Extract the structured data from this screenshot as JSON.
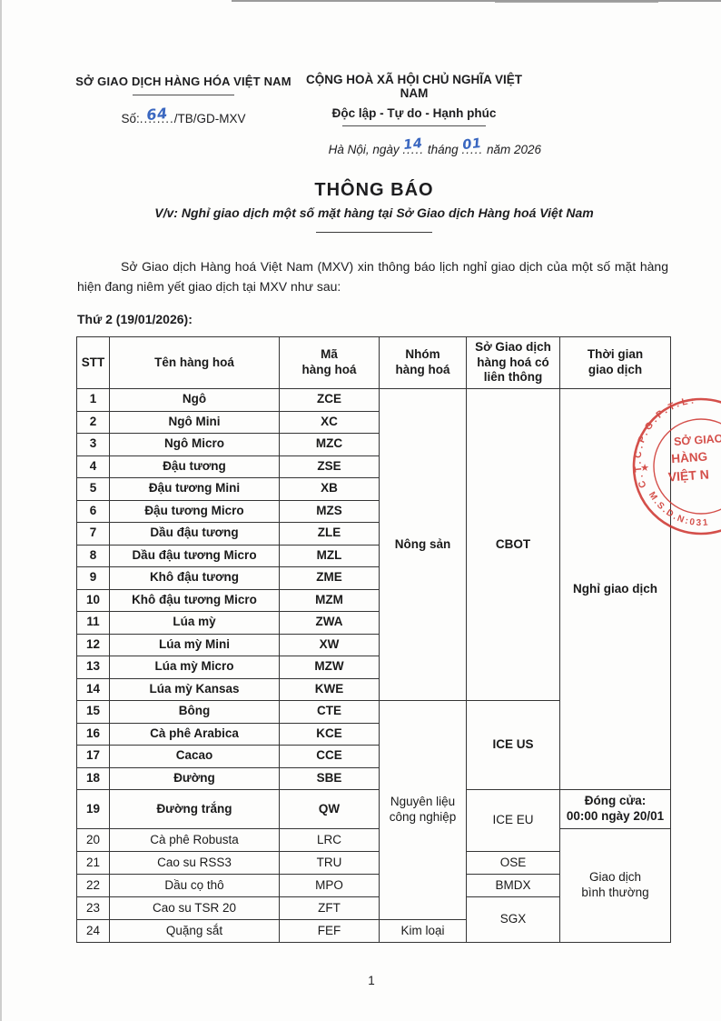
{
  "header": {
    "org_name": "SỞ GIAO DỊCH HÀNG HÓA VIỆT NAM",
    "doc_number_prefix": "Số:",
    "doc_number_dots": "........",
    "doc_number_value": "64",
    "doc_number_suffix": "/TB/GD-MXV",
    "national_motto_line1": "CỘNG HOÀ XÃ HỘI CHỦ NGHĨA VIỆT NAM",
    "national_motto_line2": "Độc lập - Tự do - Hạnh phúc",
    "date_prefix": "Hà Nội, ngày ",
    "date_day_dots": ".....",
    "date_day": "14",
    "date_middle": " tháng ",
    "date_month_dots": ".....",
    "date_month": "01",
    "date_suffix": " năm 2026"
  },
  "title": "THÔNG BÁO",
  "subtitle": "V/v: Nghỉ giao dịch một số mặt hàng tại Sở Giao dịch Hàng hoá Việt Nam",
  "body_paragraph": "Sở Giao dịch Hàng hoá Việt Nam (MXV) xin thông báo lịch nghỉ giao dịch của một số mặt hàng hiện đang niêm yết giao dịch tại MXV như sau:",
  "section_heading": "Thứ 2 (19/01/2026):",
  "table": {
    "headers": [
      "STT",
      "Tên hàng hoá",
      "Mã\nhàng hoá",
      "Nhóm\nhàng hoá",
      "Sở Giao dịch\nhàng hoá có\nliên thông",
      "Thời gian\ngiao dịch"
    ],
    "rows": [
      {
        "stt": "1",
        "name": "Ngô",
        "code": "ZCE",
        "bold": true
      },
      {
        "stt": "2",
        "name": "Ngô Mini",
        "code": "XC",
        "bold": true
      },
      {
        "stt": "3",
        "name": "Ngô Micro",
        "code": "MZC",
        "bold": true
      },
      {
        "stt": "4",
        "name": "Đậu tương",
        "code": "ZSE",
        "bold": true
      },
      {
        "stt": "5",
        "name": "Đậu tương Mini",
        "code": "XB",
        "bold": true
      },
      {
        "stt": "6",
        "name": "Đậu tương Micro",
        "code": "MZS",
        "bold": true
      },
      {
        "stt": "7",
        "name": "Dầu đậu tương",
        "code": "ZLE",
        "bold": true
      },
      {
        "stt": "8",
        "name": "Dầu đậu tương Micro",
        "code": "MZL",
        "bold": true
      },
      {
        "stt": "9",
        "name": "Khô đậu tương",
        "code": "ZME",
        "bold": true
      },
      {
        "stt": "10",
        "name": "Khô đậu tương Micro",
        "code": "MZM",
        "bold": true
      },
      {
        "stt": "11",
        "name": "Lúa mỳ",
        "code": "ZWA",
        "bold": true
      },
      {
        "stt": "12",
        "name": "Lúa mỳ Mini",
        "code": "XW",
        "bold": true
      },
      {
        "stt": "13",
        "name": "Lúa mỳ Micro",
        "code": "MZW",
        "bold": true
      },
      {
        "stt": "14",
        "name": "Lúa mỳ Kansas",
        "code": "KWE",
        "bold": true
      },
      {
        "stt": "15",
        "name": "Bông",
        "code": "CTE",
        "bold": true
      },
      {
        "stt": "16",
        "name": "Cà phê Arabica",
        "code": "KCE",
        "bold": true
      },
      {
        "stt": "17",
        "name": "Cacao",
        "code": "CCE",
        "bold": true
      },
      {
        "stt": "18",
        "name": "Đường",
        "code": "SBE",
        "bold": true
      },
      {
        "stt": "19",
        "name": "Đường trắng",
        "code": "QW",
        "bold": true
      },
      {
        "stt": "20",
        "name": "Cà phê Robusta",
        "code": "LRC",
        "bold": false
      },
      {
        "stt": "21",
        "name": "Cao su RSS3",
        "code": "TRU",
        "bold": false
      },
      {
        "stt": "22",
        "name": "Dầu cọ thô",
        "code": "MPO",
        "bold": false
      },
      {
        "stt": "23",
        "name": "Cao su TSR 20",
        "code": "ZFT",
        "bold": false
      },
      {
        "stt": "24",
        "name": "Quặng sắt",
        "code": "FEF",
        "bold": false
      }
    ],
    "group_spans": [
      {
        "label": "Nông sản",
        "start": 1,
        "span": 14,
        "bold": true
      },
      {
        "label": "Nguyên liệu\ncông nghiệp",
        "start": 15,
        "span": 9,
        "bold": false
      },
      {
        "label": "Kim loại",
        "start": 24,
        "span": 1,
        "bold": false
      }
    ],
    "exchange_spans": [
      {
        "label": "CBOT",
        "start": 1,
        "span": 14,
        "bold": true
      },
      {
        "label": "ICE US",
        "start": 15,
        "span": 4,
        "bold": true
      },
      {
        "label": "ICE EU",
        "start": 19,
        "span": 2,
        "bold": false
      },
      {
        "label": "OSE",
        "start": 21,
        "span": 1,
        "bold": false
      },
      {
        "label": "BMDX",
        "start": 22,
        "span": 1,
        "bold": false
      },
      {
        "label": "SGX",
        "start": 23,
        "span": 2,
        "bold": false
      }
    ],
    "time_spans": [
      {
        "label": "Nghỉ giao dịch",
        "start": 1,
        "span": 18,
        "bold": true
      },
      {
        "label": "Đóng cửa:\n00:00 ngày 20/01",
        "start": 19,
        "span": 1,
        "bold": true
      },
      {
        "label": "Giao dịch\nbình thường",
        "start": 20,
        "span": 5,
        "bold": false
      }
    ]
  },
  "stamp": {
    "arc_top": "C.T.C.P.G.P.T.L:",
    "arc_bottom": "M.S.D.N:031",
    "star": "★",
    "center_line1": "SỞ GIAO",
    "center_line2": "HÀNG",
    "center_line3": "VIỆT N",
    "color": "#cf3832"
  },
  "footer": {
    "page_number": "1"
  },
  "colors": {
    "ink": "#1d1d1f",
    "handwriting_blue": "#3a67c0",
    "stamp_red": "#cf3832"
  }
}
